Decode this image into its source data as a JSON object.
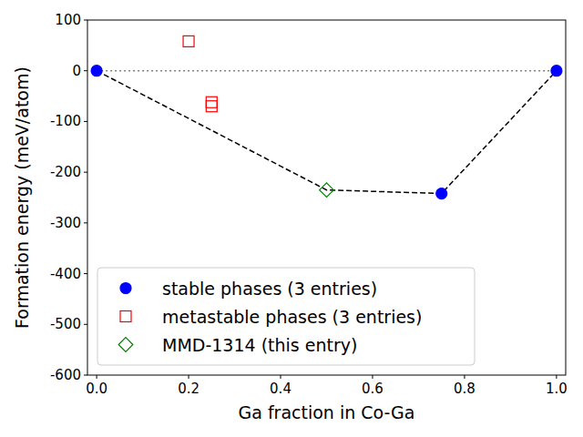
{
  "chart_data": {
    "type": "scatter",
    "x_label": "Ga fraction in Co-Ga",
    "y_label": "Formation energy (meV/atom)",
    "xlim": [
      -0.02,
      1.02
    ],
    "ylim": [
      -600,
      100
    ],
    "xticks": [
      {
        "value": 0,
        "label": "0.0"
      },
      {
        "value": 0.2,
        "label": "0.2"
      },
      {
        "value": 0.4,
        "label": "0.4"
      },
      {
        "value": 0.6,
        "label": "0.6"
      },
      {
        "value": 0.8,
        "label": "0.8"
      },
      {
        "value": 1,
        "label": "1.0"
      }
    ],
    "yticks": [
      -600,
      -500,
      -400,
      -300,
      -200,
      -100,
      0,
      100
    ],
    "grid": false,
    "legend": "lower left",
    "series": [
      {
        "type": "line",
        "color": "#808080",
        "line_style": "dotted",
        "x": [
          0,
          1
        ],
        "values": [
          0,
          0
        ]
      },
      {
        "type": "line",
        "color": "#000000",
        "line_style": "dashed",
        "x": [
          0,
          0.5,
          0.75,
          1
        ],
        "values": [
          0,
          -235,
          -242,
          0
        ]
      },
      {
        "name": "stable phases (3 entries)",
        "type": "scatter",
        "color": "#0000ff",
        "marker": "circle",
        "x": [
          0,
          0.75,
          1
        ],
        "values": [
          0,
          -242,
          0
        ]
      },
      {
        "name": "metastable phases (3 entries)",
        "type": "scatter",
        "color": "#ff0000",
        "marker": "square-open",
        "x": [
          0.2,
          0.25,
          0.25
        ],
        "values": [
          58,
          -62,
          -70
        ]
      },
      {
        "name": "MMD-1314 (this entry)",
        "type": "scatter",
        "color": "#008000",
        "marker": "diamond-open",
        "x": [
          0.5
        ],
        "values": [
          -235
        ]
      }
    ]
  }
}
